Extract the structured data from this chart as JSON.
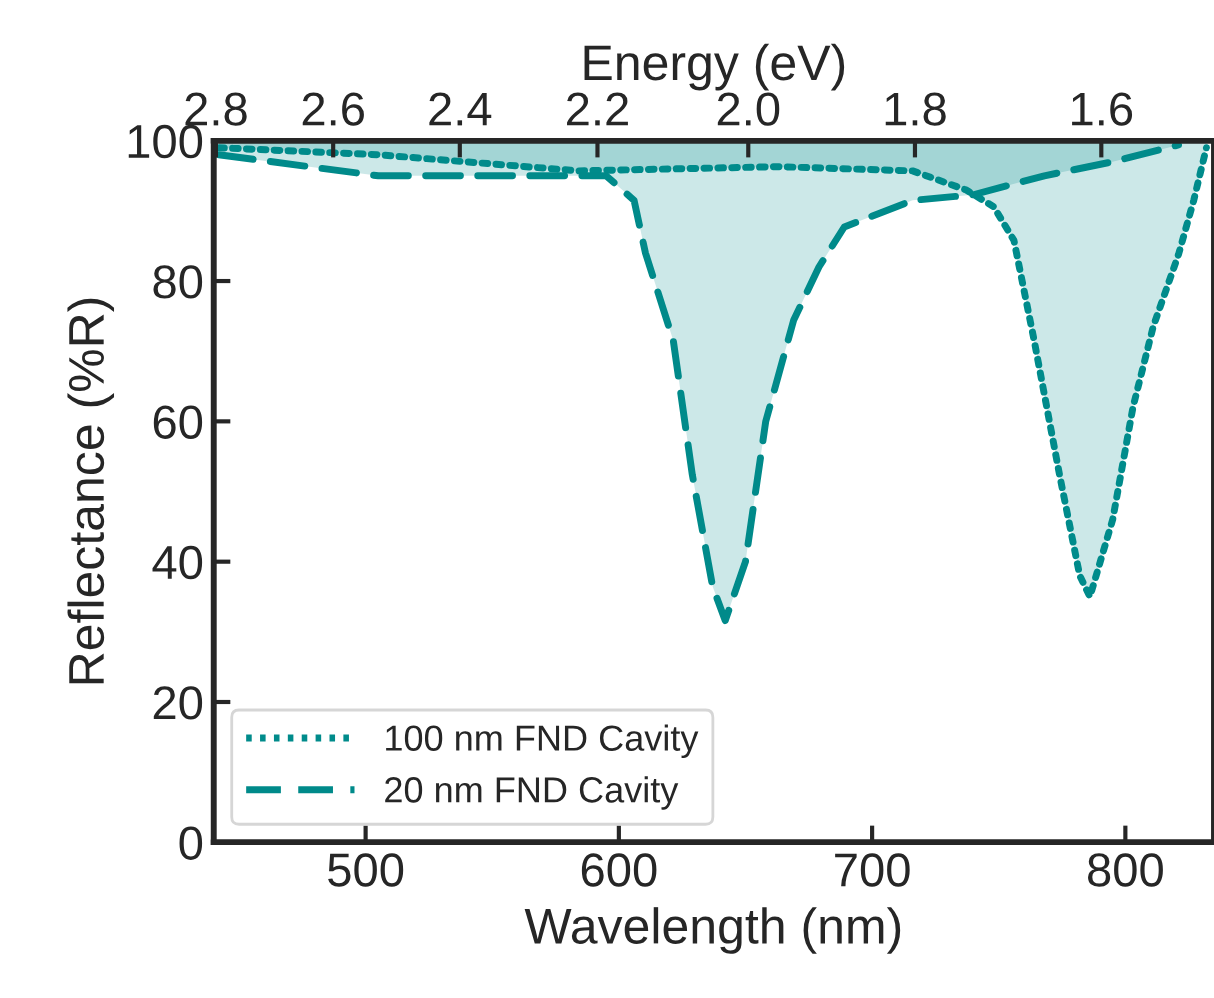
{
  "chart_data": {
    "type": "line",
    "xlabel": "Wavelength (nm)",
    "ylabel": "Reflectance (%R)",
    "x2label": "Energy (eV)",
    "xlim": [
      440,
      835
    ],
    "xticks": [
      500,
      600,
      700,
      800
    ],
    "ylim": [
      0,
      100
    ],
    "yticks": [
      0,
      20,
      40,
      60,
      80,
      100
    ],
    "x2lim": [
      2.804,
      1.49
    ],
    "log": "x2",
    "x2ticks": [
      {
        "value": 2.8,
        "label": "2.8"
      },
      {
        "value": 2.6,
        "label": "2.6"
      },
      {
        "value": 2.4,
        "label": "2.4"
      },
      {
        "value": 2.2,
        "label": "2.2"
      },
      {
        "value": 2.0,
        "label": "2.0"
      },
      {
        "value": 1.8,
        "label": "1.8"
      },
      {
        "value": 1.6,
        "label": "1.6"
      }
    ],
    "legend": "bottom left",
    "grid": false,
    "series": [
      {
        "name": "100 nm FND Cavity",
        "color": "#008b8b",
        "line_style": "dotted",
        "x": [
          442,
          505,
          584,
          663,
          716,
          737,
          748,
          756,
          764,
          774,
          782,
          786,
          795,
          803,
          811,
          821,
          827,
          832
        ],
        "values": [
          99,
          98,
          95.7,
          96.3,
          95.7,
          93,
          90.6,
          85.8,
          71.5,
          52.4,
          38,
          35,
          46,
          62,
          73.5,
          83.8,
          91.5,
          99
        ],
        "lower": [
          99,
          98,
          95.7,
          96.3,
          95.7,
          93,
          90.6,
          85.8,
          71.5,
          52.4,
          38,
          35,
          46,
          62,
          73.5,
          83.8,
          91.5,
          99
        ],
        "upper": [
          100,
          100,
          100,
          100,
          100,
          100,
          100,
          100,
          100,
          100,
          100,
          100,
          100,
          100,
          100,
          100,
          100,
          100
        ]
      },
      {
        "name": "20 nm FND Cavity",
        "color": "#008a8a",
        "line_style": "dashed",
        "x": [
          442,
          505,
          558,
          595,
          606,
          610.5,
          621.5,
          629,
          637,
          642,
          650,
          658,
          669,
          679,
          689,
          716,
          740,
          768,
          795,
          821
        ],
        "values": [
          98,
          95,
          95,
          95,
          91.5,
          84,
          71.5,
          52.4,
          36.5,
          31.6,
          40,
          60,
          74.4,
          82,
          87.7,
          91.5,
          92.3,
          95,
          97,
          99.4
        ],
        "lower": [
          98,
          95,
          95,
          95,
          91.5,
          84,
          71.5,
          52.4,
          36.5,
          31.6,
          40,
          60,
          74.4,
          82,
          87.7,
          91.5,
          92.3,
          95,
          97,
          99.4
        ],
        "upper": [
          100,
          100,
          100,
          100,
          100,
          100,
          100,
          100,
          100,
          100,
          100,
          100,
          100,
          100,
          100,
          100,
          100,
          100,
          100,
          100
        ]
      }
    ]
  }
}
